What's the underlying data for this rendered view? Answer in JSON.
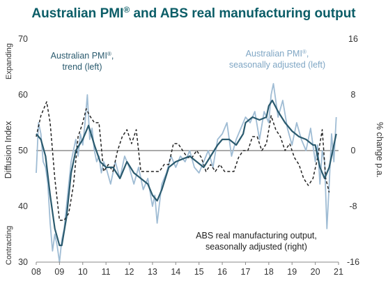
{
  "chart_data": {
    "type": "line",
    "title_main": "Australian PMI",
    "title_sup": "®",
    "title_rest": " and ABS real manufacturing output",
    "ylabel_left": "Diffusion Index",
    "ylabel_right": "% change p.a.",
    "label_expanding": "Expanding",
    "label_contracting": "Contracting",
    "x_ticks": [
      "08",
      "09",
      "10",
      "11",
      "12",
      "13",
      "14",
      "15",
      "16",
      "17",
      "18",
      "19",
      "20",
      "21"
    ],
    "xlim": [
      2008,
      2021
    ],
    "ylim_left": [
      30,
      70
    ],
    "ylim_right": [
      -16,
      16
    ],
    "y_ticks_left": [
      "30",
      "40",
      "50",
      "60",
      "70"
    ],
    "y_ticks_right": [
      "-16",
      "-8",
      "0",
      "8",
      "16"
    ],
    "reference_line_left": 50,
    "grid": false,
    "colors": {
      "title": "#0b5d67",
      "pmi_trend": "#2a5a6e",
      "pmi_sa": "#9fbcd4",
      "abs_output": "#222222",
      "reference": "#555555"
    },
    "annotations": {
      "trend_line1": "Australian PMI",
      "trend_sup": "®",
      "trend_line1_end": ",",
      "trend_line2": "trend (left)",
      "sa_line1": "Australian PMI",
      "sa_sup": "®",
      "sa_line1_end": ",",
      "sa_line2": "seasonally adjusted (left)",
      "abs_line1": "ABS real manufacturing output,",
      "abs_line2": "seasonally adjusted (right)"
    },
    "series": [
      {
        "name": "Australian PMI®, trend (left)",
        "axis": "left",
        "style": "solid",
        "x": [
          2008.0,
          2008.2,
          2008.4,
          2008.6,
          2008.8,
          2009.0,
          2009.1,
          2009.3,
          2009.5,
          2009.7,
          2010.0,
          2010.25,
          2010.5,
          2010.75,
          2011.0,
          2011.3,
          2011.6,
          2011.9,
          2012.2,
          2012.5,
          2012.8,
          2013.0,
          2013.2,
          2013.4,
          2013.7,
          2014.0,
          2014.3,
          2014.6,
          2014.9,
          2015.2,
          2015.5,
          2015.8,
          2016.0,
          2016.3,
          2016.6,
          2016.9,
          2017.0,
          2017.3,
          2017.6,
          2017.9,
          2018.0,
          2018.15,
          2018.4,
          2018.7,
          2019.0,
          2019.3,
          2019.6,
          2019.9,
          2020.0,
          2020.2,
          2020.4,
          2020.6,
          2020.9
        ],
        "y": [
          53,
          52,
          49,
          42,
          36,
          33,
          33,
          38,
          46,
          50,
          52,
          54.5,
          51,
          48,
          47,
          47,
          45,
          48,
          46,
          45,
          44,
          42,
          41,
          43,
          47,
          48,
          48.5,
          49,
          48,
          47,
          49,
          51,
          52,
          52,
          51,
          53,
          55,
          56,
          55.5,
          56,
          58,
          59,
          57,
          55,
          53.5,
          52.5,
          52,
          51,
          51,
          47,
          45,
          47,
          53
        ]
      },
      {
        "name": "Australian PMI®, seasonally adjusted (left)",
        "axis": "left",
        "style": "solid",
        "x": [
          2008.0,
          2008.1,
          2008.2,
          2008.3,
          2008.4,
          2008.5,
          2008.6,
          2008.7,
          2008.8,
          2008.9,
          2009.0,
          2009.1,
          2009.2,
          2009.3,
          2009.4,
          2009.5,
          2009.6,
          2009.7,
          2009.8,
          2009.9,
          2010.0,
          2010.1,
          2010.2,
          2010.3,
          2010.4,
          2010.5,
          2010.6,
          2010.7,
          2010.8,
          2010.9,
          2011.0,
          2011.2,
          2011.4,
          2011.6,
          2011.8,
          2012.0,
          2012.2,
          2012.4,
          2012.6,
          2012.8,
          2013.0,
          2013.1,
          2013.2,
          2013.4,
          2013.6,
          2013.8,
          2014.0,
          2014.2,
          2014.4,
          2014.6,
          2014.8,
          2015.0,
          2015.2,
          2015.4,
          2015.6,
          2015.8,
          2016.0,
          2016.2,
          2016.4,
          2016.6,
          2016.8,
          2017.0,
          2017.2,
          2017.4,
          2017.6,
          2017.8,
          2018.0,
          2018.1,
          2018.2,
          2018.4,
          2018.6,
          2018.8,
          2019.0,
          2019.2,
          2019.4,
          2019.6,
          2019.8,
          2020.0,
          2020.1,
          2020.2,
          2020.3,
          2020.4,
          2020.5,
          2020.6,
          2020.7,
          2020.8,
          2020.9
        ],
        "y": [
          46,
          55,
          53,
          48,
          47,
          44,
          37,
          32,
          35,
          33,
          30,
          34,
          36,
          40,
          44,
          48,
          50,
          52,
          49,
          53,
          51,
          55,
          60,
          52,
          54,
          50,
          48,
          49,
          46,
          48,
          47,
          44,
          48,
          45,
          49,
          47,
          44,
          47,
          43,
          45,
          40,
          42,
          37,
          44,
          46,
          49,
          47,
          49,
          48,
          50,
          47,
          46,
          48,
          50,
          47,
          52,
          53,
          55,
          49,
          52,
          54,
          56,
          55,
          57,
          52,
          57,
          55,
          60,
          62,
          56,
          59,
          54,
          51,
          55,
          52,
          50,
          54,
          48,
          51,
          44,
          50,
          48,
          36,
          44,
          53,
          48,
          56
        ]
      },
      {
        "name": "ABS real manufacturing output, seasonally adjusted (right)",
        "axis": "right",
        "style": "dashed",
        "x": [
          2008.0,
          2008.2,
          2008.45,
          2008.6,
          2008.8,
          2009.0,
          2009.2,
          2009.4,
          2009.6,
          2009.8,
          2010.0,
          2010.15,
          2010.3,
          2010.5,
          2010.7,
          2010.9,
          2011.1,
          2011.3,
          2011.5,
          2011.7,
          2011.9,
          2012.1,
          2012.3,
          2012.5,
          2012.7,
          2012.9,
          2013.1,
          2013.3,
          2013.5,
          2013.7,
          2013.9,
          2014.1,
          2014.3,
          2014.5,
          2014.7,
          2014.9,
          2015.1,
          2015.3,
          2015.5,
          2015.7,
          2015.9,
          2016.1,
          2016.3,
          2016.5,
          2016.7,
          2016.9,
          2017.1,
          2017.3,
          2017.5,
          2017.7,
          2017.9,
          2018.1,
          2018.3,
          2018.5,
          2018.7,
          2018.9,
          2019.1,
          2019.3,
          2019.5,
          2019.7,
          2019.9,
          2020.1,
          2020.3,
          2020.45,
          2020.6
        ],
        "y": [
          2,
          5,
          7,
          4,
          -4,
          -10,
          -10,
          -9,
          -5,
          2,
          4,
          6,
          5,
          4,
          4,
          -3,
          -2,
          -3,
          0,
          2,
          3,
          1,
          3,
          -3,
          -3,
          -3,
          -3,
          -3,
          -2,
          -2,
          1,
          1,
          0,
          -1,
          -1,
          0,
          -1,
          -3,
          -2,
          -3,
          -2,
          -3,
          -3,
          -3,
          -1,
          0,
          0,
          2,
          2,
          0,
          1,
          5,
          3,
          2,
          0,
          1,
          -1,
          -2,
          -4,
          -5,
          -4,
          -1,
          3,
          -4,
          -6
        ]
      }
    ]
  }
}
